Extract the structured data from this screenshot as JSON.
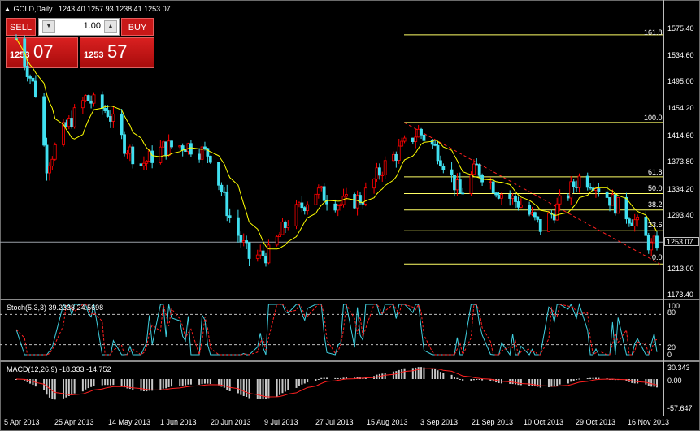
{
  "header": {
    "icon": "triangle-up-icon",
    "symbol_timeframe": "GOLD,Daily",
    "ohlc": "1243.40 1257.93 1238.41 1253.07"
  },
  "trade_panel": {
    "sell_label": "SELL",
    "buy_label": "BUY",
    "lot_value": "1.00",
    "sell_quote": {
      "prefix": "1253",
      "big": "07"
    },
    "buy_quote": {
      "prefix": "1253",
      "big": "57"
    }
  },
  "price_axis": {
    "labels": [
      "1575.40",
      "1534.60",
      "1495.00",
      "1454.20",
      "1414.60",
      "1373.80",
      "1334.20",
      "1293.40",
      "1253.07",
      "1213.00",
      "1173.40"
    ],
    "current_price": "1253.07"
  },
  "fibonacci": {
    "levels": [
      {
        "label": "161.8",
        "price": 1565.8
      },
      {
        "label": "100.0",
        "price": 1433.5
      },
      {
        "label": "61.8",
        "price": 1351.5
      },
      {
        "label": "50.0",
        "price": 1326.3
      },
      {
        "label": "38.2",
        "price": 1301.4
      },
      {
        "label": "23.6",
        "price": 1270.3
      },
      {
        "label": "0.0",
        "price": 1220.0
      }
    ]
  },
  "stochastic": {
    "title": "Stoch(5,3,3) 39.2338 24.5698",
    "scale_labels": [
      "100",
      "80",
      "20",
      "0"
    ]
  },
  "macd": {
    "title": "MACD(12,26,9) -18.333 -14.752",
    "scale_labels": [
      "30.343",
      "0.00",
      "-57.647"
    ]
  },
  "date_axis": {
    "labels": [
      "5 Apr 2013",
      "25 Apr 2013",
      "14 May 2013",
      "1 Jun 2013",
      "20 Jun 2013",
      "9 Jul 2013",
      "27 Jul 2013",
      "15 Aug 2013",
      "3 Sep 2013",
      "21 Sep 2013",
      "10 Oct 2013",
      "29 Oct 2013",
      "16 Nov 2013"
    ]
  },
  "colors": {
    "bull_candle": "#000000",
    "bull_outline": "#ff0000",
    "bear_candle": "#40e0f0",
    "moving_average": "#ffff00",
    "fib_line": "#ffff66",
    "trend_line": "#ff2020",
    "stoch_main": "#40d0e0",
    "stoch_signal": "#ff2020",
    "macd_hist": "#c8c8c8",
    "macd_signal": "#ff2020"
  },
  "chart_data": {
    "type": "candlestick",
    "symbol": "GOLD",
    "timeframe": "Daily",
    "ylim": [
      1173.4,
      1595.0
    ],
    "close_path": [
      {
        "date": "2013-04-05",
        "price": 1560
      },
      {
        "date": "2013-04-12",
        "price": 1480
      },
      {
        "date": "2013-04-16",
        "price": 1370
      },
      {
        "date": "2013-04-22",
        "price": 1420
      },
      {
        "date": "2013-04-30",
        "price": 1470
      },
      {
        "date": "2013-05-08",
        "price": 1450
      },
      {
        "date": "2013-05-14",
        "price": 1400
      },
      {
        "date": "2013-05-20",
        "price": 1370
      },
      {
        "date": "2013-05-28",
        "price": 1395
      },
      {
        "date": "2013-06-05",
        "price": 1400
      },
      {
        "date": "2013-06-14",
        "price": 1385
      },
      {
        "date": "2013-06-21",
        "price": 1290
      },
      {
        "date": "2013-06-28",
        "price": 1230
      },
      {
        "date": "2013-07-05",
        "price": 1235
      },
      {
        "date": "2013-07-12",
        "price": 1285
      },
      {
        "date": "2013-07-22",
        "price": 1330
      },
      {
        "date": "2013-07-31",
        "price": 1310
      },
      {
        "date": "2013-08-08",
        "price": 1320
      },
      {
        "date": "2013-08-15",
        "price": 1365
      },
      {
        "date": "2013-08-22",
        "price": 1395
      },
      {
        "date": "2013-08-28",
        "price": 1420
      },
      {
        "date": "2013-09-04",
        "price": 1390
      },
      {
        "date": "2013-09-12",
        "price": 1325
      },
      {
        "date": "2013-09-18",
        "price": 1365
      },
      {
        "date": "2013-09-26",
        "price": 1330
      },
      {
        "date": "2013-10-04",
        "price": 1310
      },
      {
        "date": "2013-10-11",
        "price": 1275
      },
      {
        "date": "2013-10-18",
        "price": 1310
      },
      {
        "date": "2013-10-25",
        "price": 1350
      },
      {
        "date": "2013-10-30",
        "price": 1345
      },
      {
        "date": "2013-11-07",
        "price": 1310
      },
      {
        "date": "2013-11-14",
        "price": 1285
      },
      {
        "date": "2013-11-20",
        "price": 1245
      },
      {
        "date": "2013-11-22",
        "price": 1253.07
      }
    ]
  }
}
